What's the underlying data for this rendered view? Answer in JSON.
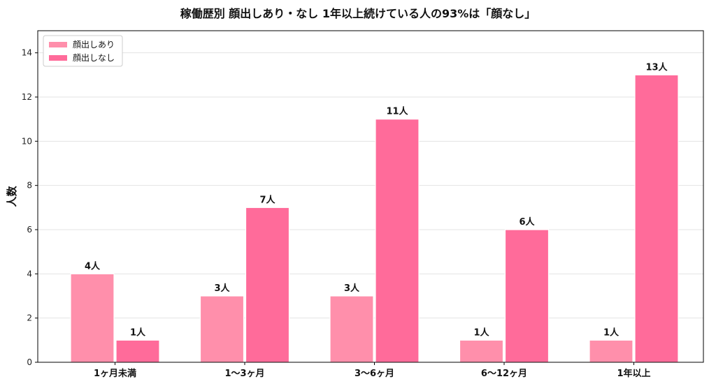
{
  "chart_data": {
    "type": "bar",
    "title": "稼働歴別 顔出しあり・なし 1年以上続けている人の93%は「顔なし」",
    "xlabel": "",
    "ylabel": "人数",
    "ylim": [
      0,
      15
    ],
    "yticks": [
      0,
      2,
      4,
      6,
      8,
      10,
      12,
      14
    ],
    "grid": true,
    "legend_position": "top-left",
    "value_suffix": "人",
    "categories": [
      "1ヶ月未満",
      "1〜3ヶ月",
      "3〜6ヶ月",
      "6〜12ヶ月",
      "1年以上"
    ],
    "series": [
      {
        "name": "顔出しあり",
        "color": "#ff8fab",
        "values": [
          4,
          3,
          3,
          1,
          1
        ]
      },
      {
        "name": "顔出しなし",
        "color": "#ff6b9a",
        "values": [
          1,
          7,
          11,
          6,
          13
        ]
      }
    ]
  }
}
